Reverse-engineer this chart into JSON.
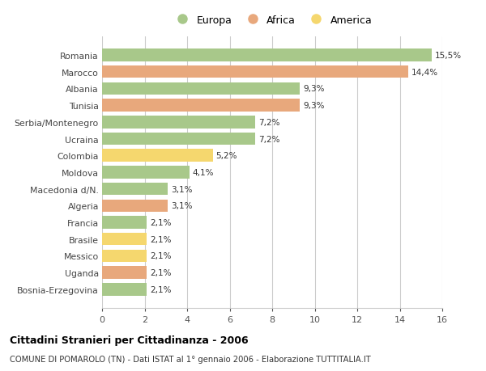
{
  "countries": [
    "Bosnia-Erzegovina",
    "Uganda",
    "Messico",
    "Brasile",
    "Francia",
    "Algeria",
    "Macedonia d/N.",
    "Moldova",
    "Colombia",
    "Ucraina",
    "Serbia/Montenegro",
    "Tunisia",
    "Albania",
    "Marocco",
    "Romania"
  ],
  "values": [
    2.1,
    2.1,
    2.1,
    2.1,
    2.1,
    3.1,
    3.1,
    4.1,
    5.2,
    7.2,
    7.2,
    9.3,
    9.3,
    14.4,
    15.5
  ],
  "labels": [
    "2,1%",
    "2,1%",
    "2,1%",
    "2,1%",
    "2,1%",
    "3,1%",
    "3,1%",
    "4,1%",
    "5,2%",
    "7,2%",
    "7,2%",
    "9,3%",
    "9,3%",
    "14,4%",
    "15,5%"
  ],
  "continents": [
    "Europa",
    "Africa",
    "America",
    "America",
    "Europa",
    "Africa",
    "Europa",
    "Europa",
    "America",
    "Europa",
    "Europa",
    "Africa",
    "Europa",
    "Africa",
    "Europa"
  ],
  "colors": {
    "Europa": "#a8c88a",
    "Africa": "#e8a87c",
    "America": "#f5d76e"
  },
  "legend": [
    "Europa",
    "Africa",
    "America"
  ],
  "legend_colors": [
    "#a8c88a",
    "#e8a87c",
    "#f5d76e"
  ],
  "xlim": [
    0,
    16
  ],
  "xticks": [
    0,
    2,
    4,
    6,
    8,
    10,
    12,
    14,
    16
  ],
  "title": "Cittadini Stranieri per Cittadinanza - 2006",
  "subtitle": "COMUNE DI POMAROLO (TN) - Dati ISTAT al 1° gennaio 2006 - Elaborazione TUTTITALIA.IT",
  "background_color": "#ffffff",
  "bar_height": 0.75,
  "grid_color": "#cccccc"
}
